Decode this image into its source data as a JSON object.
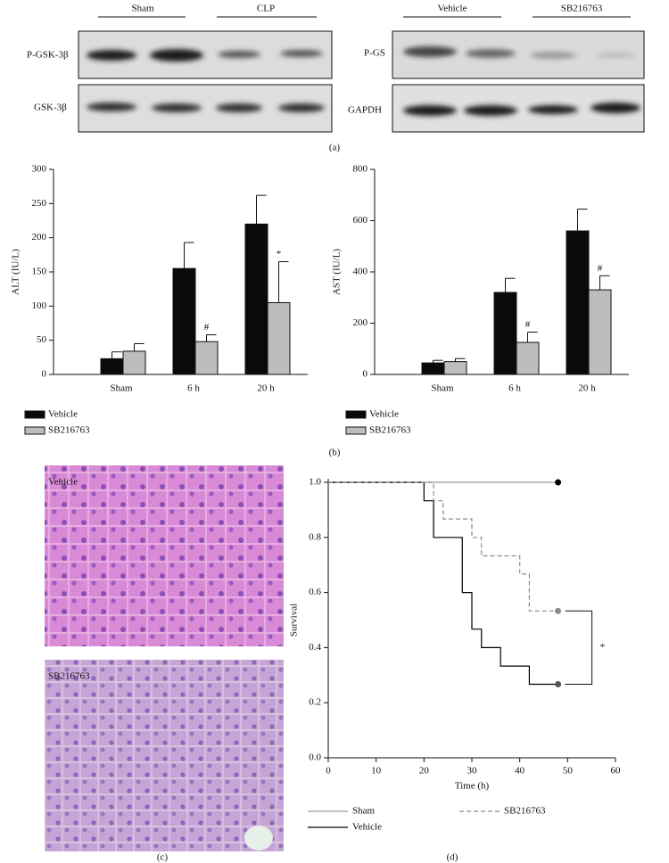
{
  "blots": {
    "left": {
      "groups": [
        "Sham",
        "CLP"
      ],
      "rows": [
        "P-GSK-3β",
        "GSK-3β"
      ]
    },
    "right": {
      "groups": [
        "Vehicle",
        "SB216763"
      ],
      "rows": [
        "P-GS",
        "GAPDH"
      ]
    }
  },
  "histology": [
    "Vehicle",
    "SB216763"
  ],
  "panel_labels": [
    "(a)",
    "(b)",
    "(c)",
    "(d)"
  ],
  "chart_data": [
    {
      "type": "bar",
      "y_label": "ALT (IU/L)",
      "categories": [
        "Sham",
        "6 h",
        "20 h"
      ],
      "series": [
        {
          "name": "Vehicle",
          "color": "#0a0a0a",
          "values": [
            23,
            155,
            220
          ],
          "errors": [
            10,
            38,
            42
          ]
        },
        {
          "name": "SB216763",
          "color": "#bdbdbd",
          "values": [
            34,
            48,
            105
          ],
          "errors": [
            11,
            10,
            60
          ],
          "marks": [
            null,
            "#",
            "*"
          ]
        }
      ],
      "ylim": [
        0,
        300
      ],
      "yticks": [
        0,
        50,
        100,
        150,
        200,
        250,
        300
      ],
      "legend": "below-left"
    },
    {
      "type": "bar",
      "y_label": "AST (IU/L)",
      "categories": [
        "Sham",
        "6 h",
        "20 h"
      ],
      "series": [
        {
          "name": "Vehicle",
          "color": "#0a0a0a",
          "values": [
            45,
            320,
            560
          ],
          "errors": [
            10,
            55,
            85
          ]
        },
        {
          "name": "SB216763",
          "color": "#bdbdbd",
          "values": [
            50,
            125,
            330
          ],
          "errors": [
            12,
            40,
            55
          ],
          "marks": [
            null,
            "#",
            "#"
          ]
        }
      ],
      "ylim": [
        0,
        800
      ],
      "yticks": [
        0,
        200,
        400,
        600,
        800
      ],
      "legend": "below-left"
    },
    {
      "type": "step",
      "x_label": "Time (h)",
      "y_label": "Survival",
      "series": [
        {
          "name": "Sham",
          "color": "#9a9a9a",
          "marker_color": "#000000",
          "dashed": false,
          "x": [
            0,
            48
          ],
          "values": [
            1.0,
            1.0
          ]
        },
        {
          "name": "Vehicle",
          "color": "#000000",
          "marker_color": "#555555",
          "dashed": false,
          "x": [
            0,
            20,
            22,
            28,
            30,
            32,
            36,
            42,
            48
          ],
          "values": [
            1.0,
            0.933,
            0.8,
            0.6,
            0.467,
            0.4,
            0.333,
            0.267,
            0.267
          ]
        },
        {
          "name": "SB216763",
          "color": "#8a8a8a",
          "marker_color": "#8a8a8a",
          "dashed": true,
          "x": [
            0,
            22,
            24,
            30,
            32,
            40,
            42,
            48
          ],
          "values": [
            1.0,
            0.933,
            0.867,
            0.8,
            0.733,
            0.667,
            0.533,
            0.533
          ]
        }
      ],
      "annotation": "*",
      "xlim": [
        0,
        60
      ],
      "xticks": [
        0,
        10,
        20,
        30,
        40,
        50,
        60
      ],
      "ylim": [
        0,
        1
      ],
      "yticks": [
        {
          "value": 0,
          "label": "0.0"
        },
        0.2,
        0.4,
        0.6,
        0.8,
        {
          "value": 1,
          "label": "1.0"
        }
      ],
      "legend": "below"
    }
  ]
}
